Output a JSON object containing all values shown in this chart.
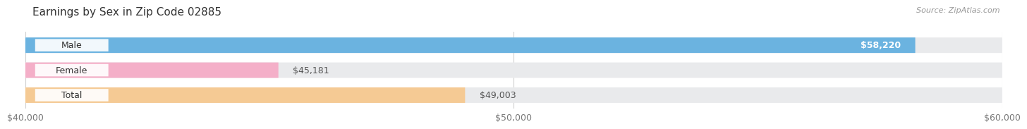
{
  "title": "Earnings by Sex in Zip Code 02885",
  "source": "Source: ZipAtlas.com",
  "categories": [
    "Male",
    "Female",
    "Total"
  ],
  "values": [
    58220,
    45181,
    49003
  ],
  "bar_colors": [
    "#6bb3e0",
    "#f4afc8",
    "#f5ca94"
  ],
  "track_color": "#e9eaec",
  "xlim_min": 40000,
  "xlim_max": 60000,
  "x_ticks": [
    40000,
    50000,
    60000
  ],
  "x_tick_labels": [
    "$40,000",
    "$50,000",
    "$60,000"
  ],
  "value_labels": [
    "$58,220",
    "$45,181",
    "$49,003"
  ],
  "background_color": "#ffffff",
  "bar_height": 0.62,
  "title_fontsize": 11,
  "source_fontsize": 8,
  "label_fontsize": 9,
  "tick_fontsize": 9,
  "category_fontsize": 9
}
